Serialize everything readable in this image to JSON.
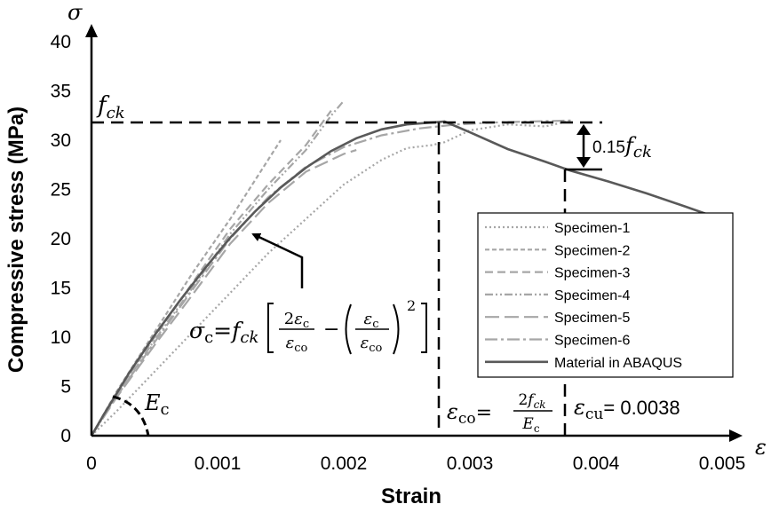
{
  "chart_data": {
    "type": "line",
    "xlabel": "Strain",
    "ylabel": "Compressive stress (MPa)",
    "x_axis_symbol": "ε",
    "y_axis_symbol": "σ",
    "xlim": [
      0,
      0.005
    ],
    "ylim": [
      0,
      40
    ],
    "x_ticks": [
      "0",
      "0.001",
      "0.002",
      "0.003",
      "0.004",
      "0.005"
    ],
    "y_ticks": [
      "0",
      "5",
      "10",
      "15",
      "20",
      "25",
      "30",
      "35",
      "40"
    ],
    "grid": false,
    "legend_position": "right",
    "series": [
      {
        "name": "Specimen-1",
        "style": "dotted",
        "color": "#a6a6a6",
        "x": [
          0,
          0.0002,
          0.0005,
          0.0008,
          0.0011,
          0.0014,
          0.0017,
          0.002,
          0.0023,
          0.0025,
          0.0027,
          0.0028,
          0.003,
          0.0033,
          0.0036,
          0.0038
        ],
        "y": [
          0,
          2.5,
          6.5,
          10.5,
          14.5,
          18.5,
          22,
          25.5,
          28,
          29.2,
          29.5,
          29.8,
          31,
          31.6,
          31.4,
          32
        ]
      },
      {
        "name": "Specimen-2",
        "style": "short-dash",
        "color": "#a6a6a6",
        "x": [
          0,
          0.0002,
          0.0005,
          0.0008,
          0.0011,
          0.0013,
          0.0015
        ],
        "y": [
          0,
          4.5,
          10.5,
          16.5,
          22,
          26,
          30
        ]
      },
      {
        "name": "Specimen-3",
        "style": "medium-dash",
        "color": "#a6a6a6",
        "x": [
          0,
          0.0002,
          0.0005,
          0.0008,
          0.0011,
          0.0014,
          0.0017,
          0.0019
        ],
        "y": [
          0,
          4.3,
          10,
          15.5,
          21,
          25.5,
          29.5,
          33
        ]
      },
      {
        "name": "Specimen-4",
        "style": "dash-dot-dot",
        "color": "#a6a6a6",
        "x": [
          0,
          0.0002,
          0.0005,
          0.0008,
          0.0011,
          0.0014,
          0.0017,
          0.0019,
          0.002
        ],
        "y": [
          0,
          4.1,
          9.7,
          15,
          20.5,
          25,
          29,
          32.5,
          34
        ]
      },
      {
        "name": "Specimen-5",
        "style": "long-dash",
        "color": "#a6a6a6",
        "x": [
          0,
          0.0002,
          0.0005,
          0.0008,
          0.0011,
          0.0014,
          0.0017,
          0.002,
          0.0021
        ],
        "y": [
          0,
          3.9,
          9.2,
          14.3,
          19.5,
          23.6,
          26.8,
          28.6,
          29
        ]
      },
      {
        "name": "Specimen-6",
        "style": "dash-dot",
        "color": "#a6a6a6",
        "x": [
          0,
          0.0002,
          0.0005,
          0.0008,
          0.0011,
          0.0014,
          0.0017,
          0.002,
          0.0023,
          0.0026,
          0.0029,
          0.0032,
          0.0035,
          0.0038
        ],
        "y": [
          0,
          4,
          9.5,
          14.8,
          20,
          24.2,
          27.3,
          29.3,
          30.5,
          31.2,
          31.6,
          31.8,
          31.9,
          32
        ]
      },
      {
        "name": "Material in ABAQUS",
        "style": "solid",
        "color": "#595959",
        "x": [
          0,
          0.0001,
          0.0003,
          0.0005,
          0.0007,
          0.0009,
          0.0011,
          0.0013,
          0.0015,
          0.0017,
          0.0019,
          0.0021,
          0.0023,
          0.0025,
          0.0028,
          0.003,
          0.0033,
          0.0036,
          0.0038,
          0.0041,
          0.0044,
          0.0047,
          0.0049
        ],
        "y": [
          0,
          2.2,
          6.4,
          10.2,
          13.7,
          17,
          20.1,
          22.8,
          25.2,
          27.2,
          28.9,
          30.2,
          31.1,
          31.6,
          31.9,
          30.8,
          29.1,
          27.8,
          26.9,
          25.8,
          24.6,
          23.3,
          22.4
        ]
      }
    ],
    "reference_lines": {
      "fck_value": 32,
      "strain_co": 0.0028,
      "strain_cu": 0.0038,
      "point_015fck": 27.2
    },
    "annotations": {
      "fck_label": "f",
      "fck_sub": "ck",
      "delta_label": "0.15",
      "equation_sigma": "σ",
      "equation_sub_c": "c",
      "equation_eq": "=",
      "equation_two": "2",
      "equation_eps": "ε",
      "equation_sub_co": "co",
      "equation_minus": "−",
      "equation_power": "2",
      "ec_label": "E",
      "ec_sub": "c",
      "eco_label": "ε",
      "eco_sub": "co",
      "eco_eq": "=",
      "eco_num": "2",
      "ecu_label": "ε",
      "ecu_sub": "cu",
      "ecu_value": "= 0.0038"
    }
  }
}
